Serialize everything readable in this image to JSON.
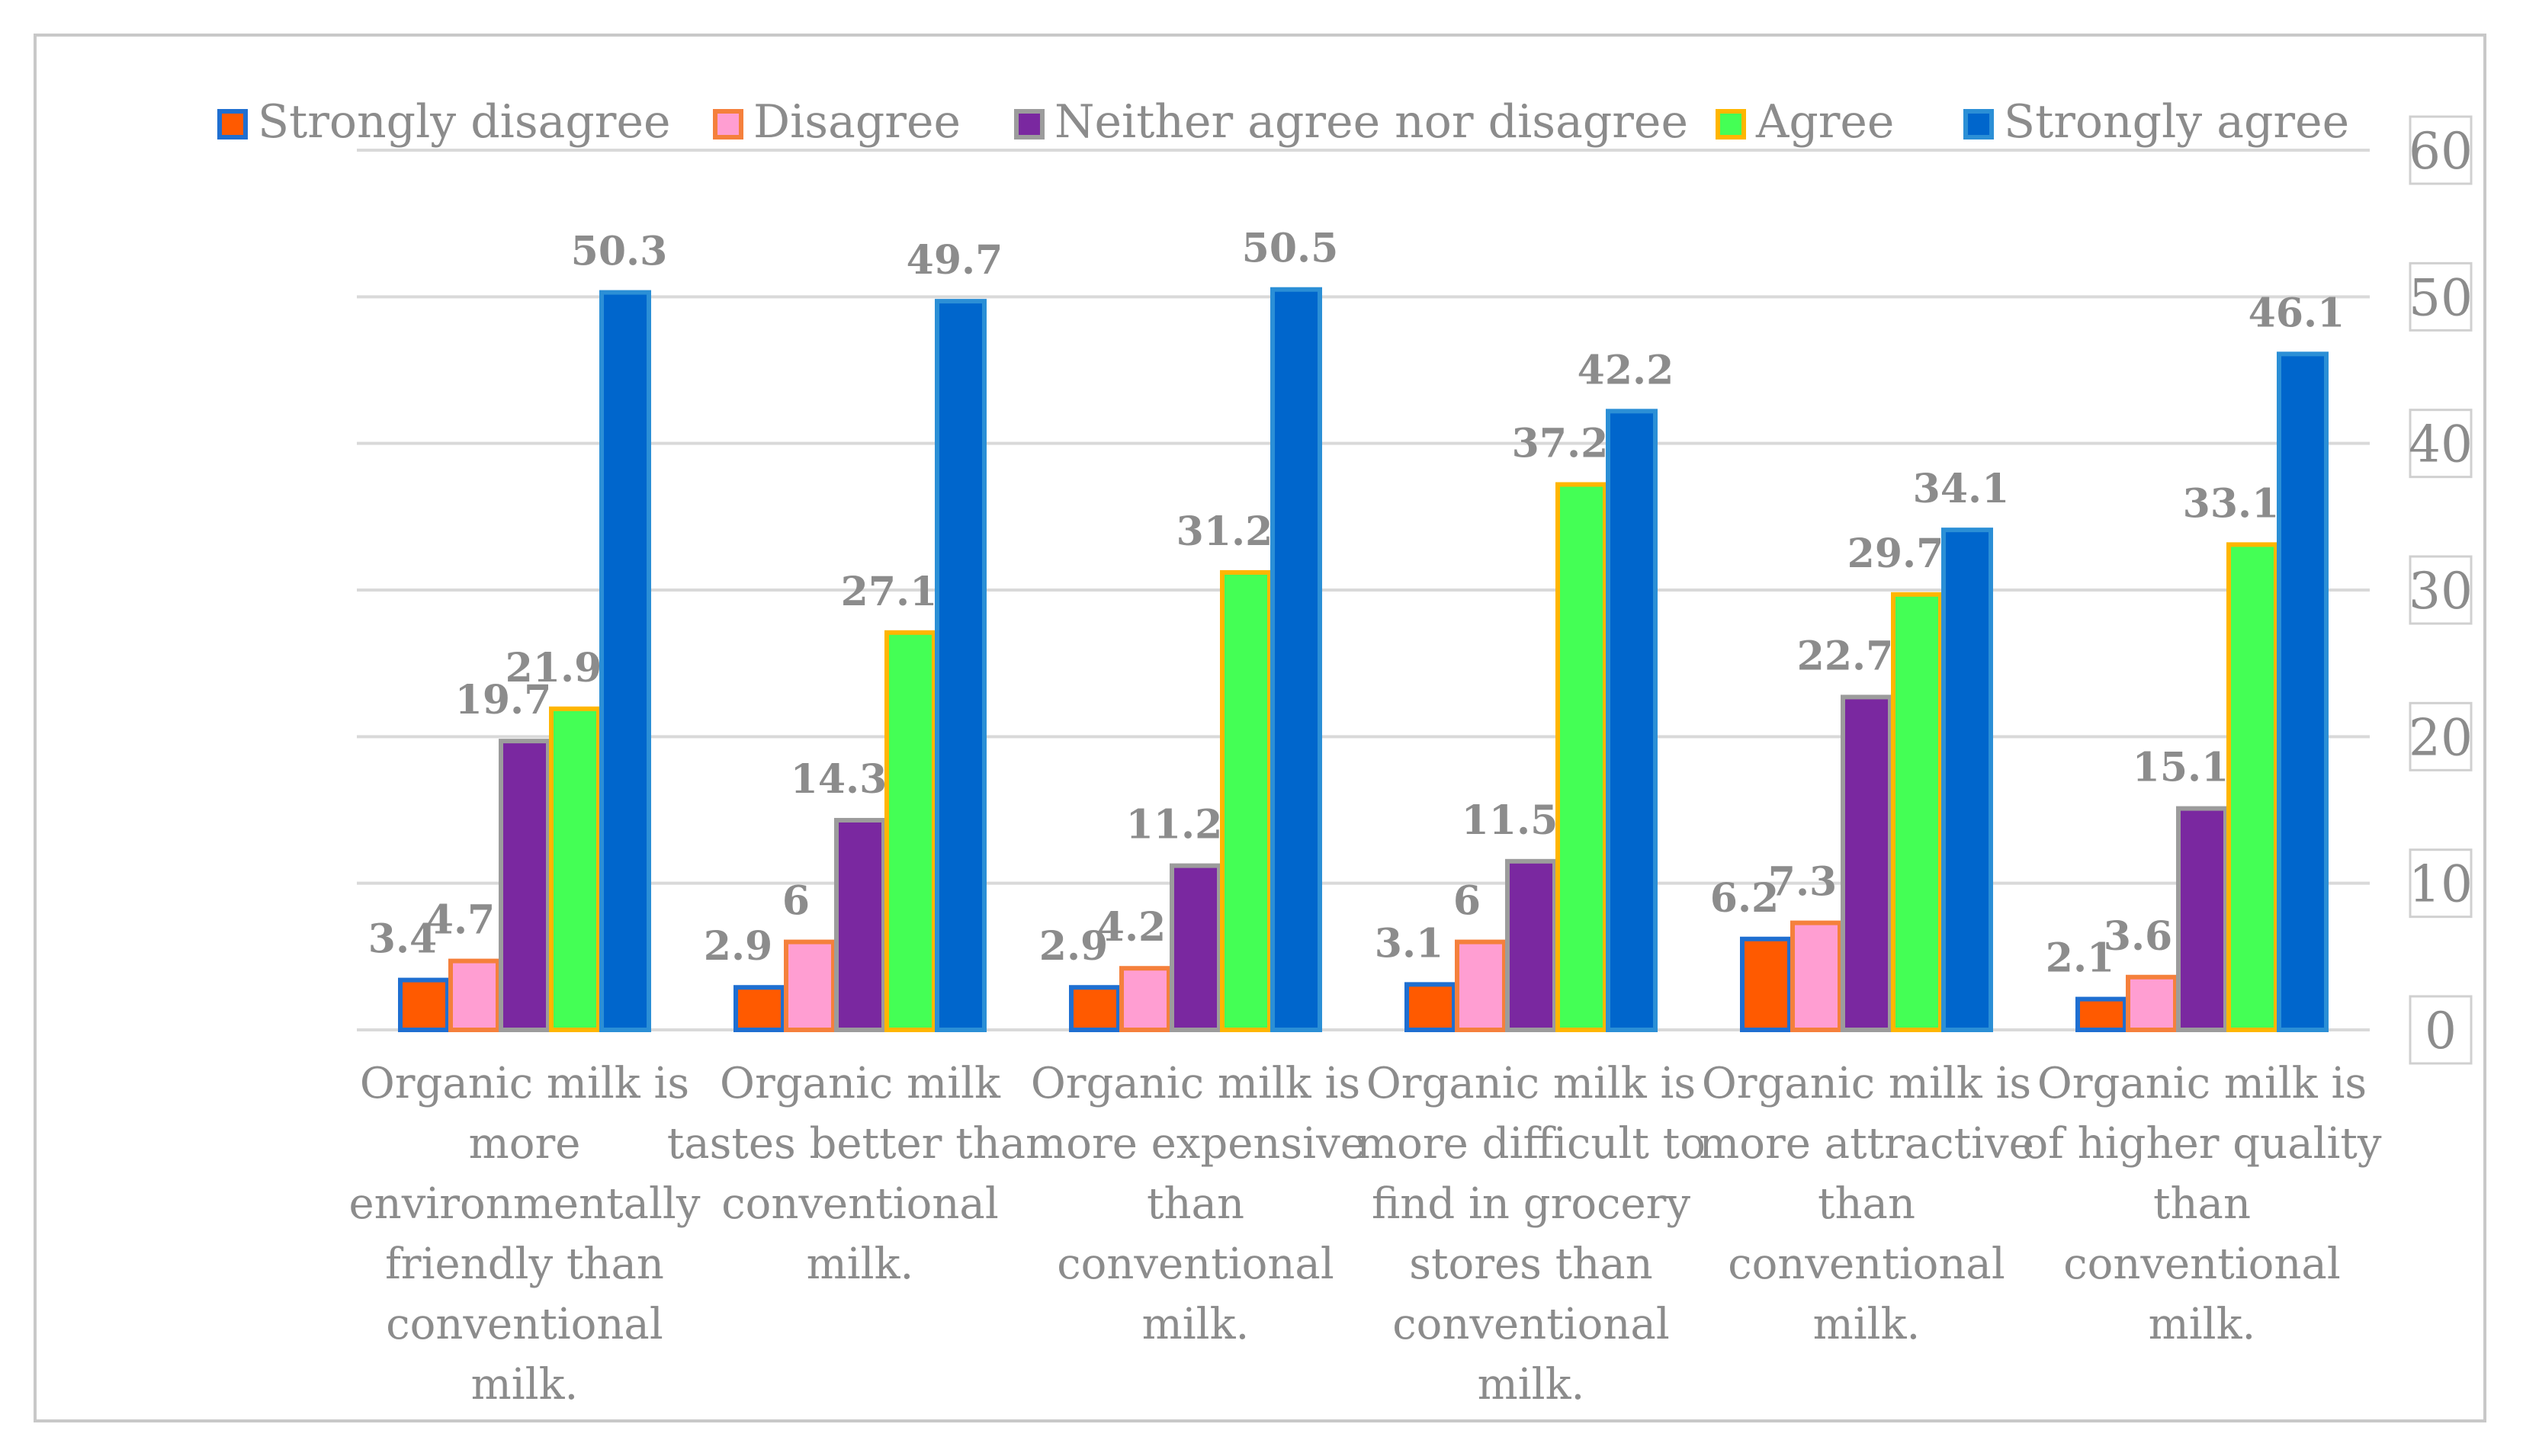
{
  "chart_data": {
    "type": "bar",
    "title": "",
    "xlabel": "",
    "ylabel": "",
    "ylim": [
      0,
      60
    ],
    "yticks": [
      0,
      10,
      20,
      30,
      40,
      50,
      60
    ],
    "y_axis_side": "right",
    "legend_position": "top",
    "grid": true,
    "categories": [
      [
        "Organic milk is",
        "more",
        "environmentally",
        "friendly than",
        "conventional",
        "milk."
      ],
      [
        "Organic milk",
        "tastes better than",
        "conventional",
        "milk."
      ],
      [
        "Organic milk is",
        "more expensive",
        "than",
        "conventional",
        "milk."
      ],
      [
        "Organic milk is",
        "more difficult to",
        "find in grocery",
        "stores than",
        "conventional",
        "milk."
      ],
      [
        "Organic milk is",
        "more attractive",
        "than",
        "conventional",
        "milk."
      ],
      [
        "Organic milk is",
        "of higher quality",
        "than",
        "conventional",
        "milk."
      ]
    ],
    "series": [
      {
        "name": "Strongly disagree",
        "color": "#ff5a00",
        "border": "#1f6fd1",
        "values": [
          3.4,
          2.9,
          2.9,
          3.1,
          6.2,
          2.1
        ]
      },
      {
        "name": "Disagree",
        "color": "#ff9ed2",
        "border": "#f5803c",
        "values": [
          4.7,
          6,
          4.2,
          6,
          7.3,
          3.6
        ]
      },
      {
        "name": "Neither agree nor disagree",
        "color": "#7a28a0",
        "border": "#9c9c9c",
        "values": [
          19.7,
          14.3,
          11.2,
          11.5,
          22.7,
          15.1
        ]
      },
      {
        "name": "Agree",
        "color": "#44ff55",
        "border": "#ffb600",
        "values": [
          21.9,
          27.1,
          31.2,
          37.2,
          29.7,
          33.1
        ]
      },
      {
        "name": "Strongly agree",
        "color": "#0066cc",
        "border": "#2b8fd6",
        "values": [
          50.3,
          49.7,
          50.5,
          42.2,
          34.1,
          46.1
        ]
      }
    ]
  }
}
